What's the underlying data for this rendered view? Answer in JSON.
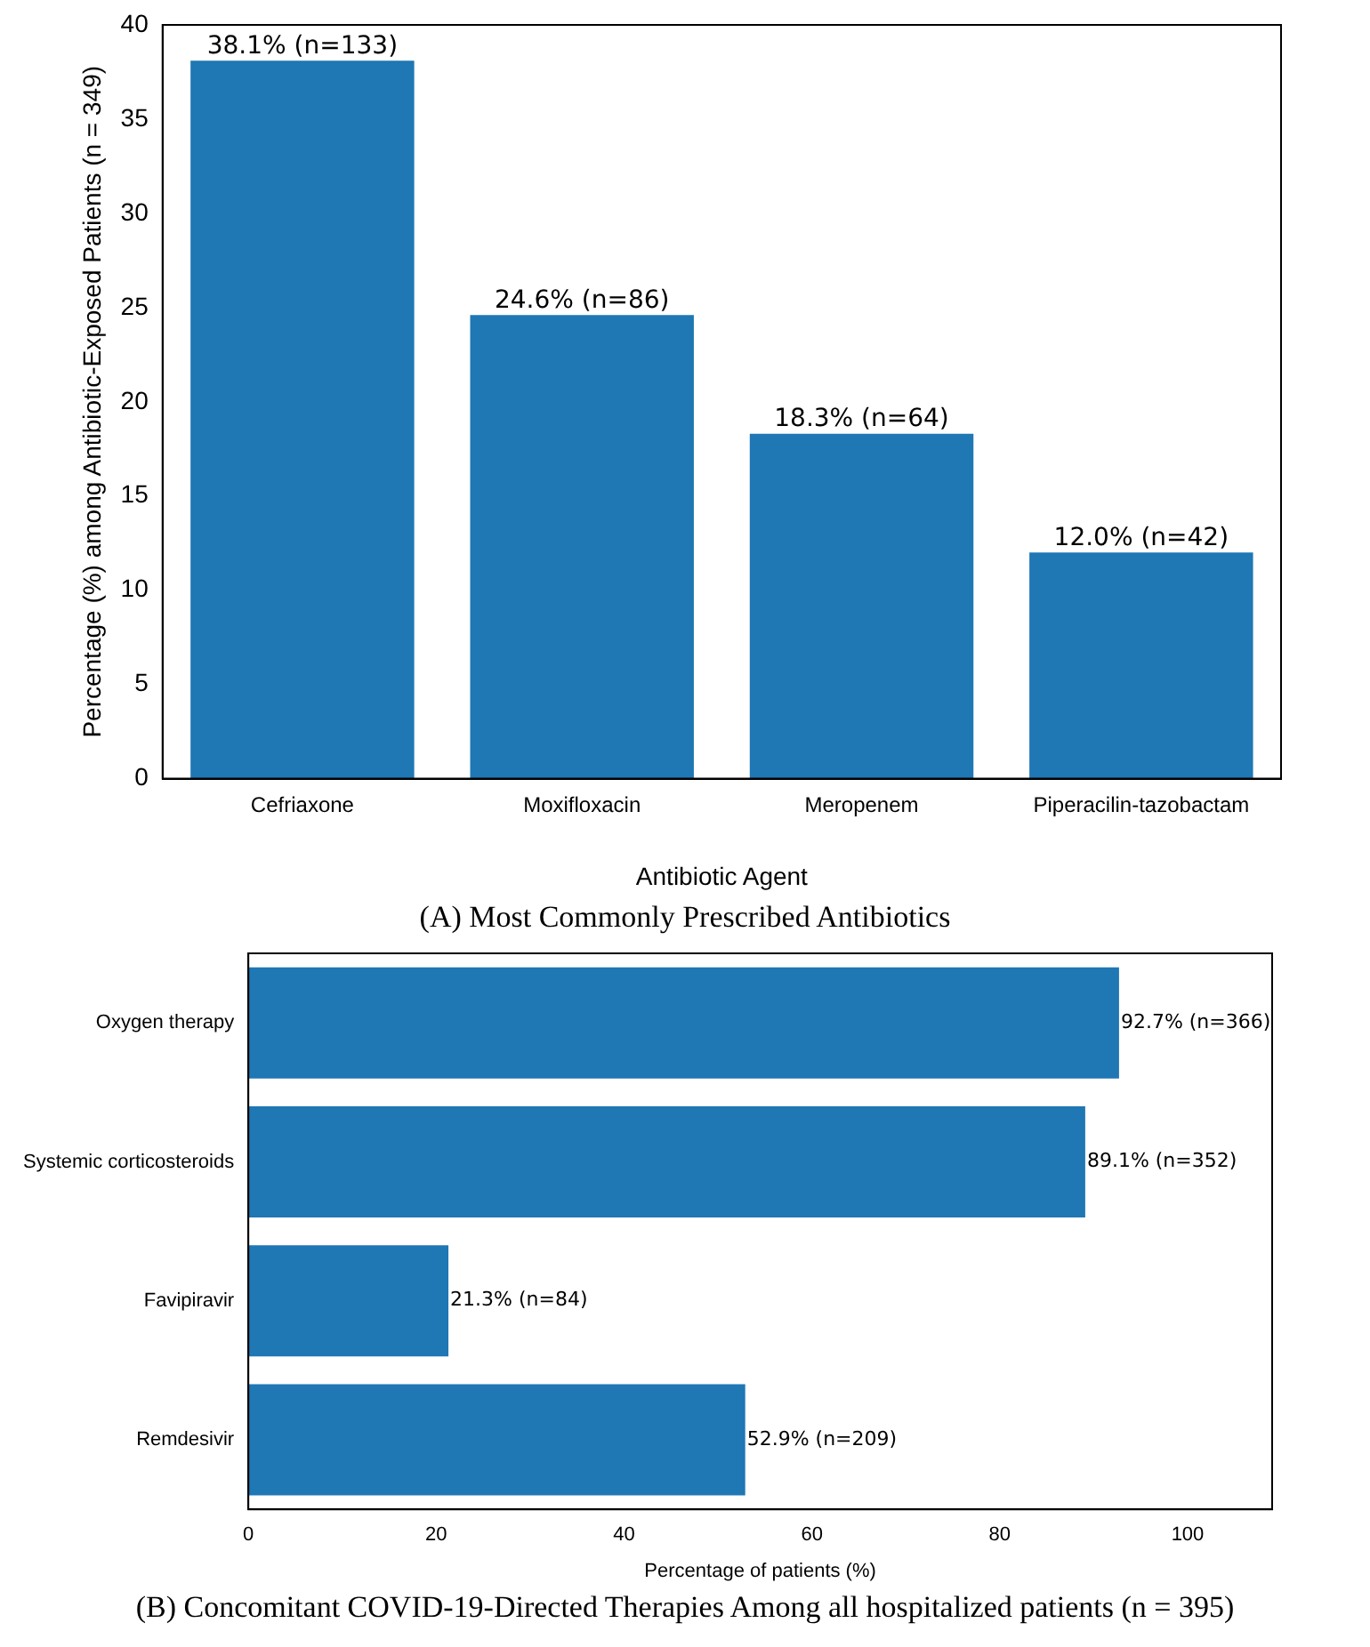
{
  "chart_data": [
    {
      "type": "bar",
      "categories": [
        "Cefriaxone",
        "Moxifloxacin",
        "Meropenem",
        "Piperacilin-tazobactam"
      ],
      "values": [
        38.1,
        24.6,
        18.3,
        12.0
      ],
      "color": "#1f77b4",
      "value_labels": [
        "38.1% (n=133)",
        "24.6% (n=86)",
        "18.3% (n=64)",
        "12.0% (n=42)"
      ],
      "ylim": [
        0,
        40
      ],
      "yticks": [
        0,
        5,
        10,
        15,
        20,
        25,
        30,
        35,
        40
      ],
      "grid": false,
      "xlabel": "Antibiotic Agent",
      "ylabel": "Percentage (%) among Antibiotic-Exposed Patients (n = 349)",
      "annotations": [
        "(A) Most Commonly Prescribed Antibiotics"
      ]
    },
    {
      "type": "bar",
      "orientation": "horizontal",
      "categories": [
        "Oxygen therapy",
        "Systemic corticosteroids",
        "Favipiravir",
        "Remdesivir"
      ],
      "values": [
        92.7,
        89.1,
        21.3,
        52.9
      ],
      "color": "#1f77b4",
      "value_labels": [
        "92.7% (n=366)",
        "89.1% (n=352)",
        "21.3% (n=84)",
        "52.9% (n=209)"
      ],
      "xlim": [
        0,
        109
      ],
      "xticks": [
        0,
        20,
        40,
        60,
        80,
        100
      ],
      "grid": false,
      "xlabel": "Percentage of patients (%)",
      "annotations": [
        "(B) Concomitant COVID-19-Directed Therapies Among all hospitalized patients (n = 395)"
      ]
    }
  ]
}
